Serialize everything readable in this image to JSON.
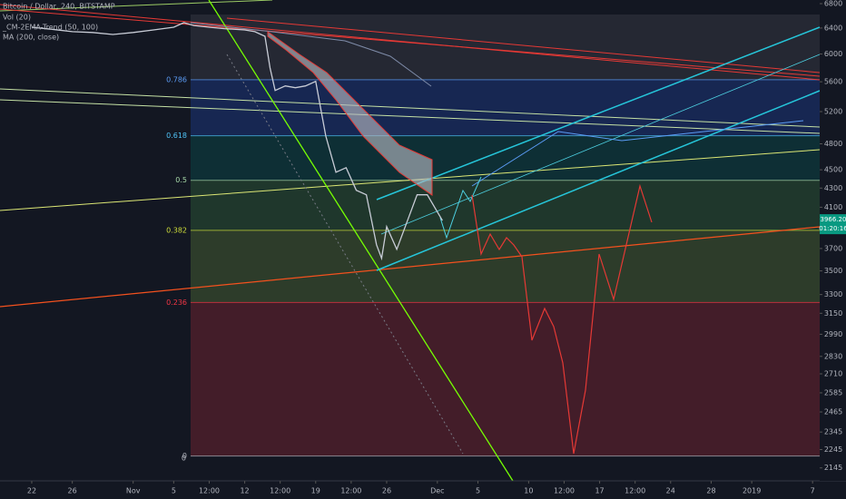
{
  "chart_data": {
    "type": "line",
    "series": [
      {
        "name": "Bitcoin / Dollar, 240, BITSTAMP",
        "color": "#c8ccd6",
        "x": [
          22,
          24,
          26,
          28,
          30,
          32,
          34,
          36,
          37,
          38,
          39.5,
          41,
          43,
          44,
          45,
          45.5,
          46,
          47,
          48,
          49,
          50,
          51,
          52,
          53,
          54,
          55,
          56,
          56.5,
          57,
          58,
          59,
          60,
          61,
          62.5
        ],
        "values": [
          6413,
          6380,
          6342,
          6330,
          6299,
          6330,
          6370,
          6413,
          6486,
          6440,
          6413,
          6390,
          6370,
          6342,
          6270,
          5796,
          5481,
          5543,
          5518,
          5543,
          5606,
          4894,
          4473,
          4524,
          4277,
          4229,
          3735,
          3611,
          3907,
          3693,
          3951,
          4229,
          4229,
          3966.2
        ]
      }
    ],
    "indicators": [
      "Vol (20)",
      "_CM-2EMA-Trend (50, 100)",
      "MA (200, close)"
    ],
    "last_price": {
      "value": 3966.2,
      "label": "3966.20",
      "color": "#089981"
    },
    "countdown": "01:20:16",
    "volume_ticks": [
      0
    ],
    "fib": {
      "levels": [
        0.786,
        0.618,
        0.5,
        0.382,
        0.236,
        0
      ],
      "colors": [
        "#2962ff",
        "#00897b",
        "#4caf50",
        "#8bc34a",
        "#f23645",
        "#f23645"
      ],
      "label_colors": [
        "#5b9cf6",
        "#4fc3f7",
        "#a5d6a7",
        "#cddc39",
        "#f23645",
        "#b2b5be"
      ]
    },
    "log_scale": true,
    "xlim": [
      18.87,
      99.7
    ],
    "xticks": [
      22,
      26,
      {
        "value": 32,
        "label": "Nov"
      },
      {
        "value": 36,
        "label": "5"
      },
      {
        "value": 39.5,
        "label": "12:00"
      },
      {
        "value": 43,
        "label": "12"
      },
      {
        "value": 46.5,
        "label": "12:00"
      },
      {
        "value": 50,
        "label": "19"
      },
      {
        "value": 53.5,
        "label": "12:00"
      },
      {
        "value": 57,
        "label": "26"
      },
      {
        "value": 62,
        "label": "Dec"
      },
      {
        "value": 66,
        "label": "5"
      },
      {
        "value": 71,
        "label": "10"
      },
      {
        "value": 74.5,
        "label": "12:00"
      },
      {
        "value": 78,
        "label": "17"
      },
      {
        "value": 81.5,
        "label": "12:00"
      },
      {
        "value": 85,
        "label": "24"
      },
      {
        "value": 89,
        "label": "28"
      },
      {
        "value": 93,
        "label": "2019"
      },
      {
        "value": 99,
        "label": "7"
      }
    ],
    "ylim": [
      2077,
      6862
    ],
    "yticks": [
      6800,
      6400,
      6000,
      5600,
      5200,
      4800,
      4500,
      4300,
      4100,
      3900,
      3700,
      3500,
      3300,
      3150,
      2990,
      2830,
      2710,
      2585,
      2465,
      2345,
      2245,
      2145
    ]
  }
}
